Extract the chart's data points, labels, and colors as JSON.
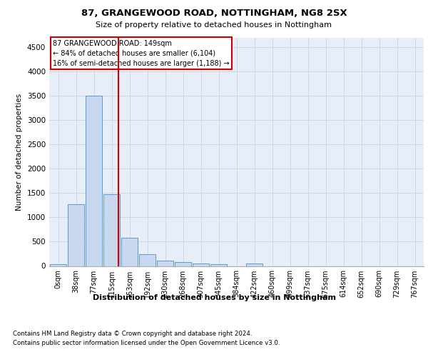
{
  "title1": "87, GRANGEWOOD ROAD, NOTTINGHAM, NG8 2SX",
  "title2": "Size of property relative to detached houses in Nottingham",
  "xlabel": "Distribution of detached houses by size in Nottingham",
  "ylabel": "Number of detached properties",
  "bin_labels": [
    "0sqm",
    "38sqm",
    "77sqm",
    "115sqm",
    "153sqm",
    "192sqm",
    "230sqm",
    "268sqm",
    "307sqm",
    "345sqm",
    "384sqm",
    "422sqm",
    "460sqm",
    "499sqm",
    "537sqm",
    "575sqm",
    "614sqm",
    "652sqm",
    "690sqm",
    "729sqm",
    "767sqm"
  ],
  "bar_values": [
    30,
    1270,
    3500,
    1480,
    580,
    240,
    115,
    80,
    55,
    35,
    0,
    55,
    0,
    0,
    0,
    0,
    0,
    0,
    0,
    0,
    0
  ],
  "bar_color": "#c8d9ef",
  "bar_edge_color": "#5b9bd5",
  "grid_color": "#d0d8e8",
  "background_color": "#e8eef8",
  "annotation_box_color": "#cc0000",
  "footnote1": "Contains HM Land Registry data © Crown copyright and database right 2024.",
  "footnote2": "Contains public sector information licensed under the Open Government Licence v3.0.",
  "ylim": [
    0,
    4700
  ],
  "yticks": [
    0,
    500,
    1000,
    1500,
    2000,
    2500,
    3000,
    3500,
    4000,
    4500
  ]
}
